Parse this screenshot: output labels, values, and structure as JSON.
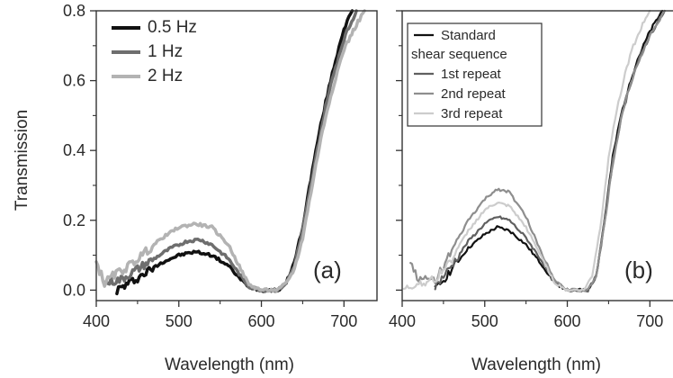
{
  "chart_data": [
    {
      "type": "line",
      "panel_label": "(a)",
      "xlabel": "Wavelength (nm)",
      "ylabel": "Transmission",
      "xlim": [
        400,
        740
      ],
      "ylim": [
        -0.03,
        0.8
      ],
      "xticks": [
        "400",
        "500",
        "600",
        "700"
      ],
      "yticks": [
        "0.0",
        "0.2",
        "0.4",
        "0.6",
        "0.8"
      ],
      "legend_position": "top-left",
      "grid": false,
      "series": [
        {
          "name": "0.5 Hz",
          "color": "#111111",
          "width": 3.5,
          "points": [
            [
              425,
              0.0
            ],
            [
              440,
              0.02
            ],
            [
              460,
              0.05
            ],
            [
              480,
              0.08
            ],
            [
              500,
              0.1
            ],
            [
              520,
              0.11
            ],
            [
              540,
              0.1
            ],
            [
              560,
              0.07
            ],
            [
              575,
              0.03
            ],
            [
              585,
              0.01
            ],
            [
              600,
              0.0
            ],
            [
              620,
              0.0
            ],
            [
              630,
              0.02
            ],
            [
              640,
              0.08
            ],
            [
              650,
              0.18
            ],
            [
              660,
              0.32
            ],
            [
              670,
              0.45
            ],
            [
              680,
              0.56
            ],
            [
              690,
              0.66
            ],
            [
              700,
              0.75
            ],
            [
              710,
              0.8
            ]
          ]
        },
        {
          "name": "1 Hz",
          "color": "#6e6e6e",
          "width": 3.5,
          "points": [
            [
              410,
              0.02
            ],
            [
              430,
              0.03
            ],
            [
              450,
              0.06
            ],
            [
              470,
              0.09
            ],
            [
              490,
              0.12
            ],
            [
              510,
              0.14
            ],
            [
              525,
              0.145
            ],
            [
              540,
              0.13
            ],
            [
              560,
              0.09
            ],
            [
              575,
              0.04
            ],
            [
              585,
              0.01
            ],
            [
              600,
              0.0
            ],
            [
              620,
              0.0
            ],
            [
              630,
              0.02
            ],
            [
              640,
              0.07
            ],
            [
              650,
              0.17
            ],
            [
              660,
              0.3
            ],
            [
              670,
              0.43
            ],
            [
              680,
              0.55
            ],
            [
              690,
              0.64
            ],
            [
              700,
              0.72
            ],
            [
              715,
              0.8
            ]
          ]
        },
        {
          "name": "2 Hz",
          "color": "#b3b3b3",
          "width": 3.5,
          "points": [
            [
              400,
              0.08
            ],
            [
              410,
              0.02
            ],
            [
              420,
              0.04
            ],
            [
              440,
              0.07
            ],
            [
              460,
              0.11
            ],
            [
              480,
              0.15
            ],
            [
              500,
              0.18
            ],
            [
              520,
              0.19
            ],
            [
              540,
              0.18
            ],
            [
              560,
              0.13
            ],
            [
              575,
              0.06
            ],
            [
              585,
              0.015
            ],
            [
              600,
              0.0
            ],
            [
              620,
              0.0
            ],
            [
              630,
              0.02
            ],
            [
              640,
              0.06
            ],
            [
              650,
              0.15
            ],
            [
              660,
              0.28
            ],
            [
              670,
              0.41
            ],
            [
              680,
              0.52
            ],
            [
              690,
              0.61
            ],
            [
              700,
              0.69
            ],
            [
              715,
              0.76
            ],
            [
              725,
              0.8
            ]
          ]
        }
      ]
    },
    {
      "type": "line",
      "panel_label": "(b)",
      "xlabel": "Wavelength (nm)",
      "ylabel": "",
      "xlim": [
        400,
        740
      ],
      "ylim": [
        -0.03,
        0.8
      ],
      "xticks": [
        "400",
        "500",
        "600",
        "700"
      ],
      "yticks": [],
      "legend_position": "top-left",
      "grid": false,
      "series": [
        {
          "name": "Standard shear sequence",
          "legend_lines": [
            "Standard",
            "shear sequence"
          ],
          "color": "#111111",
          "width": 2.2,
          "points": [
            [
              440,
              0.0
            ],
            [
              460,
              0.06
            ],
            [
              480,
              0.12
            ],
            [
              500,
              0.16
            ],
            [
              515,
              0.18
            ],
            [
              530,
              0.17
            ],
            [
              550,
              0.13
            ],
            [
              570,
              0.07
            ],
            [
              585,
              0.02
            ],
            [
              600,
              0.0
            ],
            [
              625,
              0.0
            ],
            [
              635,
              0.04
            ],
            [
              645,
              0.2
            ],
            [
              655,
              0.38
            ],
            [
              665,
              0.5
            ],
            [
              675,
              0.59
            ],
            [
              685,
              0.66
            ],
            [
              700,
              0.74
            ],
            [
              715,
              0.8
            ]
          ]
        },
        {
          "name": "1st repeat",
          "color": "#606060",
          "width": 2.2,
          "points": [
            [
              440,
              0.01
            ],
            [
              460,
              0.07
            ],
            [
              480,
              0.14
            ],
            [
              500,
              0.19
            ],
            [
              515,
              0.21
            ],
            [
              530,
              0.2
            ],
            [
              550,
              0.15
            ],
            [
              570,
              0.08
            ],
            [
              585,
              0.02
            ],
            [
              600,
              0.0
            ],
            [
              625,
              0.0
            ],
            [
              635,
              0.04
            ],
            [
              645,
              0.19
            ],
            [
              655,
              0.37
            ],
            [
              665,
              0.49
            ],
            [
              675,
              0.58
            ],
            [
              685,
              0.65
            ],
            [
              700,
              0.73
            ],
            [
              718,
              0.8
            ]
          ]
        },
        {
          "name": "2nd repeat",
          "color": "#8e8e8e",
          "width": 2.2,
          "points": [
            [
              410,
              0.08
            ],
            [
              420,
              0.03
            ],
            [
              440,
              0.03
            ],
            [
              460,
              0.11
            ],
            [
              480,
              0.2
            ],
            [
              500,
              0.26
            ],
            [
              515,
              0.29
            ],
            [
              530,
              0.28
            ],
            [
              550,
              0.21
            ],
            [
              570,
              0.1
            ],
            [
              585,
              0.03
            ],
            [
              600,
              0.0
            ],
            [
              625,
              0.0
            ],
            [
              635,
              0.04
            ],
            [
              645,
              0.19
            ],
            [
              655,
              0.36
            ],
            [
              665,
              0.49
            ],
            [
              675,
              0.58
            ],
            [
              685,
              0.65
            ],
            [
              700,
              0.73
            ],
            [
              718,
              0.8
            ]
          ]
        },
        {
          "name": "3rd repeat",
          "color": "#cccccc",
          "width": 2.2,
          "points": [
            [
              402,
              0.0
            ],
            [
              420,
              0.02
            ],
            [
              440,
              0.03
            ],
            [
              460,
              0.09
            ],
            [
              480,
              0.17
            ],
            [
              500,
              0.23
            ],
            [
              515,
              0.25
            ],
            [
              530,
              0.24
            ],
            [
              550,
              0.18
            ],
            [
              570,
              0.09
            ],
            [
              585,
              0.02
            ],
            [
              600,
              0.0
            ],
            [
              620,
              0.0
            ],
            [
              630,
              0.04
            ],
            [
              640,
              0.18
            ],
            [
              650,
              0.38
            ],
            [
              660,
              0.52
            ],
            [
              670,
              0.62
            ],
            [
              680,
              0.7
            ],
            [
              695,
              0.78
            ],
            [
              700,
              0.8
            ]
          ]
        }
      ]
    }
  ]
}
